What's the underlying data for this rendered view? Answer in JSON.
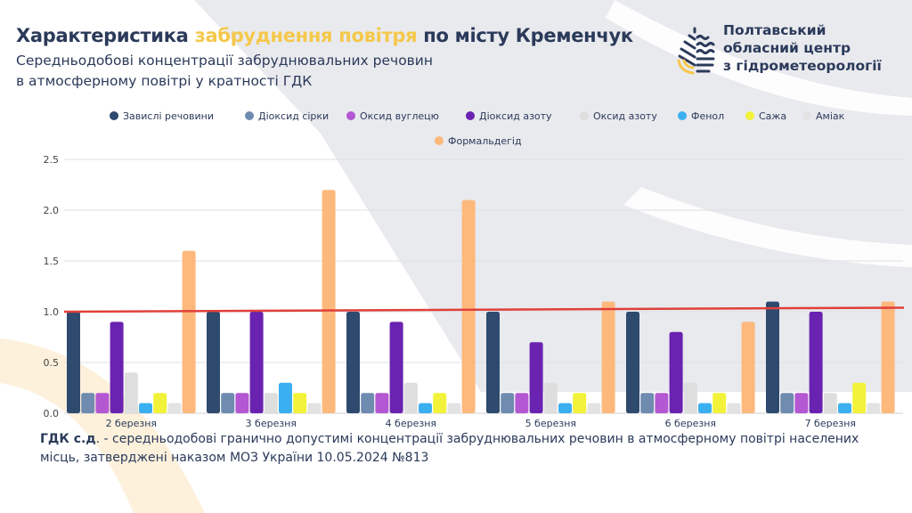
{
  "header": {
    "title_part1": "Характеристика ",
    "title_highlight": "забруднення повітря",
    "title_part2": " по місту Кременчук",
    "subtitle_line1": "Середньодобові концентрації забруднювальних речовин",
    "subtitle_line2": "в атмосферному повітрі у кратності ГДК"
  },
  "logo": {
    "line1": "Полтавський",
    "line2": "обласний центр",
    "line3": "з гідрометеорології"
  },
  "footnote": {
    "bold": "ГДК с.д",
    "text": ". - середньодобові гранично допустимі концентрації забруднювальних речовин в атмосферному повітрі населених місць, затверджені наказом МОЗ України 10.05.2024 №813"
  },
  "colors": {
    "title": "#2b3a5a",
    "highlight": "#f5c84b",
    "threshold": "#e0403a",
    "bg_band": "#e9eaee"
  },
  "chart_data": {
    "type": "bar",
    "title": "",
    "xlabel": "",
    "ylabel": "",
    "ylim": [
      0,
      2.5
    ],
    "yticks": [
      0.0,
      0.5,
      1.0,
      1.5,
      2.0,
      2.5
    ],
    "ytick_labels": [
      "0.0",
      "0.5",
      "1.0",
      "1.5",
      "2.0",
      "2.5"
    ],
    "grid": true,
    "legend_position": "top",
    "categories": [
      "2 березня",
      "3 березня",
      "4 березня",
      "5 березня",
      "6 березня",
      "7 березня"
    ],
    "series": [
      {
        "name": "Завислі речовини",
        "color": "#2e4a6e",
        "values": [
          1.0,
          1.0,
          1.0,
          1.0,
          1.0,
          1.1
        ]
      },
      {
        "name": "Діоксид сірки",
        "color": "#6f8bb0",
        "values": [
          0.2,
          0.2,
          0.2,
          0.2,
          0.2,
          0.2
        ]
      },
      {
        "name": "Оксид вуглецю",
        "color": "#b457d2",
        "values": [
          0.2,
          0.2,
          0.2,
          0.2,
          0.2,
          0.2
        ]
      },
      {
        "name": "Діоксид азоту",
        "color": "#6a22b0",
        "values": [
          0.9,
          1.0,
          0.9,
          0.7,
          0.8,
          1.0
        ]
      },
      {
        "name": "Оксид азоту",
        "color": "#dedede",
        "values": [
          0.4,
          0.2,
          0.3,
          0.3,
          0.3,
          0.2
        ]
      },
      {
        "name": "Фенол",
        "color": "#3ab0f0",
        "values": [
          0.1,
          0.3,
          0.1,
          0.1,
          0.1,
          0.1
        ]
      },
      {
        "name": "Сажа",
        "color": "#f2f23a",
        "values": [
          0.2,
          0.2,
          0.2,
          0.2,
          0.2,
          0.3
        ]
      },
      {
        "name": "Аміак",
        "color": "#e3e3e3",
        "values": [
          0.1,
          0.1,
          0.1,
          0.1,
          0.1,
          0.1
        ]
      },
      {
        "name": "Формальдегід",
        "color": "#fdb97c",
        "values": [
          1.6,
          2.2,
          2.1,
          1.1,
          0.9,
          1.1
        ]
      }
    ],
    "threshold_line": {
      "start_value": 1.0,
      "end_value": 1.04,
      "color": "#e0403a"
    }
  }
}
